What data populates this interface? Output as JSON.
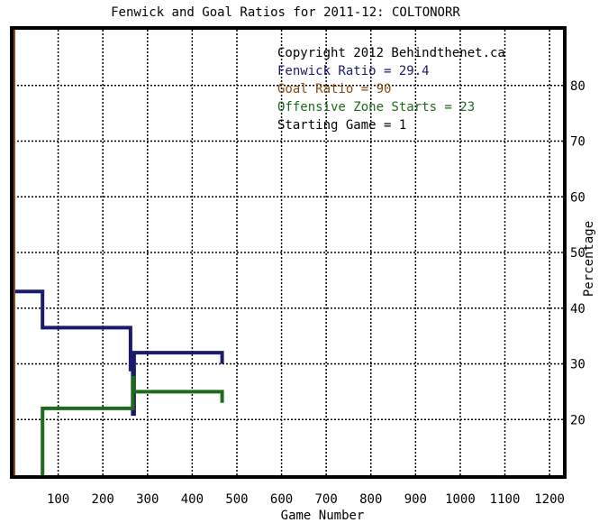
{
  "chart_data": {
    "type": "line",
    "title": "Fenwick and Goal Ratios for 2011-12: COLTONORR",
    "xlabel": "Game Number",
    "ylabel": "Percentage",
    "xlim": [
      0,
      1230
    ],
    "ylim": [
      10,
      90
    ],
    "x_ticks": [
      100,
      200,
      300,
      400,
      500,
      600,
      700,
      800,
      900,
      1000,
      1100,
      1200
    ],
    "y_ticks": [
      20,
      30,
      40,
      50,
      60,
      70,
      80
    ],
    "grid": true,
    "legend_position": "top-right",
    "annotations": [
      {
        "text": "Copyright 2012 Behindthenet.ca",
        "color": "#000000"
      },
      {
        "text": "Fenwick Ratio = 29.4",
        "color": "#1a1a6e"
      },
      {
        "text": "Goal Ratio = 90",
        "color": "#8b4a14"
      },
      {
        "text": "Offensive Zone Starts = 23",
        "color": "#1e6a1e"
      },
      {
        "text": "Starting Game = 1",
        "color": "#000000"
      }
    ],
    "series": [
      {
        "color": "#1a1a6e",
        "width": 4,
        "points": [
          [
            0,
            26
          ],
          [
            0,
            43
          ],
          [
            65,
            43
          ],
          [
            65,
            36.5
          ],
          [
            262,
            36.5
          ],
          [
            262,
            29
          ],
          [
            267,
            29
          ],
          [
            267,
            21
          ],
          [
            270,
            21
          ],
          [
            270,
            32
          ],
          [
            467,
            32
          ],
          [
            467,
            30
          ]
        ]
      },
      {
        "color": "#1e6a1e",
        "width": 4,
        "points": [
          [
            65,
            10
          ],
          [
            65,
            22
          ],
          [
            267,
            22
          ],
          [
            267,
            27.5
          ],
          [
            270,
            27.5
          ],
          [
            270,
            25
          ],
          [
            467,
            25
          ],
          [
            467,
            23
          ]
        ]
      },
      {
        "color": "#8b4a14",
        "width": 4,
        "points": [
          [
            0,
            10
          ],
          [
            0,
            100
          ]
        ]
      }
    ]
  }
}
